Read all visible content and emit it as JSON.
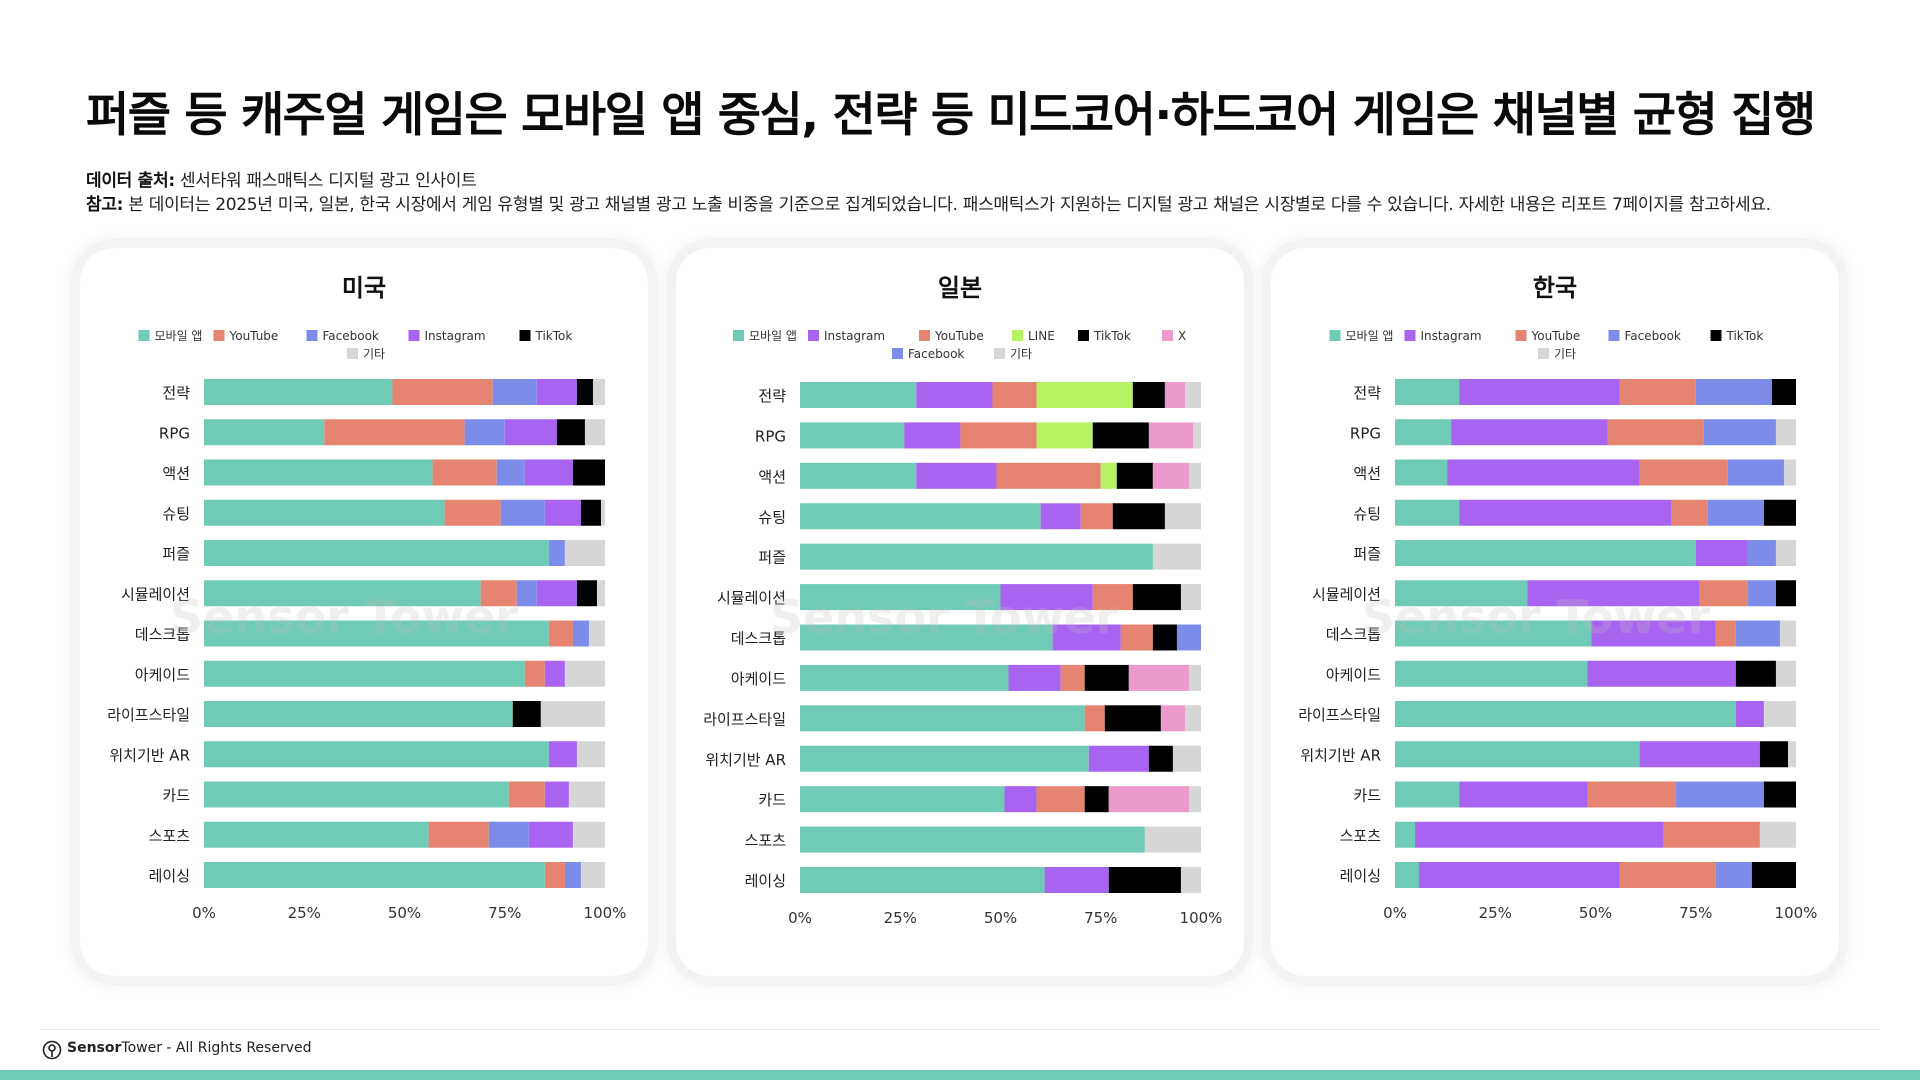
{
  "title": "퍼즐 등 캐주얼 게임은 모바일 앱 중심, 전략 등 미드코어·하드코어 게임은 채널별 균형 집행",
  "source_label": "데이터 출처:",
  "source_text": "센서타워 패스매틱스 디지털 광고 인사이트",
  "note_label": "참고:",
  "note_text": "본 데이터는 2025년 미국, 일본, 한국 시장에서 게임 유형별 및 광고 채널별 광고 노출 비중을 기준으로 집계되었습니다. 패스매틱스가 지원하는 디지털 광고 채널은 시장별로 다를 수 있습니다. 자세한 내용은 리포트 7페이지를 참고하세요.",
  "watermark": "Sensor Tower",
  "footer": {
    "brand_a": "Sensor",
    "brand_b": "Tower",
    "rights": " - All Rights Reserved"
  },
  "colors": {
    "모바일 앱": "#6fcbb5",
    "YouTube": "#e58470",
    "Facebook": "#7d8ce8",
    "Instagram": "#a863f0",
    "TikTok": "#000000",
    "LINE": "#b5f363",
    "X": "#ec99cb",
    "기타": "#d6d6d6"
  },
  "chart_data": [
    {
      "type": "bar",
      "orientation": "horizontal",
      "stacked": true,
      "title": "미국",
      "categories": [
        "전략",
        "RPG",
        "액션",
        "슈팅",
        "퍼즐",
        "시뮬레이션",
        "데스크톱",
        "아케이드",
        "라이프스타일",
        "위치기반 AR",
        "카드",
        "스포츠",
        "레이싱"
      ],
      "x_ticks": [
        "0%",
        "25%",
        "50%",
        "75%",
        "100%"
      ],
      "xlim": [
        0,
        100
      ],
      "legend": "top",
      "series": [
        {
          "name": "모바일 앱",
          "values": [
            47,
            30,
            57,
            60,
            86,
            69,
            86,
            80,
            77,
            86,
            76,
            56,
            85
          ]
        },
        {
          "name": "YouTube",
          "values": [
            25,
            35,
            16,
            14,
            0,
            9,
            6,
            5,
            0,
            0,
            9,
            15,
            5
          ]
        },
        {
          "name": "Facebook",
          "values": [
            11,
            10,
            7,
            11,
            4,
            5,
            4,
            0,
            0,
            0,
            0,
            10,
            4
          ]
        },
        {
          "name": "Instagram",
          "values": [
            10,
            13,
            12,
            9,
            0,
            10,
            0,
            5,
            0,
            7,
            6,
            11,
            0
          ]
        },
        {
          "name": "TikTok",
          "values": [
            4,
            7,
            8,
            5,
            0,
            5,
            0,
            0,
            7,
            0,
            0,
            0,
            0
          ]
        },
        {
          "name": "기타",
          "values": [
            3,
            5,
            0,
            1,
            10,
            2,
            4,
            10,
            16,
            7,
            9,
            8,
            6
          ]
        }
      ]
    },
    {
      "type": "bar",
      "orientation": "horizontal",
      "stacked": true,
      "title": "일본",
      "categories": [
        "전략",
        "RPG",
        "액션",
        "슈팅",
        "퍼즐",
        "시뮬레이션",
        "데스크톱",
        "아케이드",
        "라이프스타일",
        "위치기반 AR",
        "카드",
        "스포츠",
        "레이싱"
      ],
      "x_ticks": [
        "0%",
        "25%",
        "50%",
        "75%",
        "100%"
      ],
      "xlim": [
        0,
        100
      ],
      "legend": "top",
      "series": [
        {
          "name": "모바일 앱",
          "values": [
            29,
            26,
            29,
            60,
            88,
            50,
            63,
            52,
            71,
            72,
            51,
            86,
            61
          ]
        },
        {
          "name": "Instagram",
          "values": [
            19,
            14,
            20,
            10,
            0,
            23,
            17,
            13,
            0,
            15,
            8,
            0,
            16
          ]
        },
        {
          "name": "YouTube",
          "values": [
            11,
            19,
            26,
            8,
            0,
            10,
            8,
            6,
            5,
            0,
            12,
            0,
            0
          ]
        },
        {
          "name": "LINE",
          "values": [
            24,
            14,
            4,
            0,
            0,
            0,
            0,
            0,
            0,
            0,
            0,
            0,
            0
          ]
        },
        {
          "name": "TikTok",
          "values": [
            8,
            14,
            9,
            13,
            0,
            12,
            6,
            11,
            14,
            6,
            6,
            0,
            18
          ]
        },
        {
          "name": "X",
          "values": [
            5,
            11,
            9,
            0,
            0,
            0,
            0,
            15,
            6,
            0,
            20,
            0,
            0
          ]
        },
        {
          "name": "Facebook",
          "values": [
            0,
            0,
            0,
            0,
            0,
            0,
            6,
            0,
            0,
            0,
            0,
            0,
            0
          ]
        },
        {
          "name": "기타",
          "values": [
            4,
            2,
            3,
            9,
            12,
            5,
            0,
            3,
            4,
            7,
            3,
            14,
            5
          ]
        }
      ]
    },
    {
      "type": "bar",
      "orientation": "horizontal",
      "stacked": true,
      "title": "한국",
      "categories": [
        "전략",
        "RPG",
        "액션",
        "슈팅",
        "퍼즐",
        "시뮬레이션",
        "데스크톱",
        "아케이드",
        "라이프스타일",
        "위치기반 AR",
        "카드",
        "스포츠",
        "레이싱"
      ],
      "x_ticks": [
        "0%",
        "25%",
        "50%",
        "75%",
        "100%"
      ],
      "xlim": [
        0,
        100
      ],
      "legend": "top",
      "series": [
        {
          "name": "모바일 앱",
          "values": [
            16,
            14,
            13,
            16,
            75,
            33,
            49,
            48,
            85,
            61,
            16,
            5,
            6
          ]
        },
        {
          "name": "Instagram",
          "values": [
            40,
            39,
            48,
            53,
            13,
            43,
            31,
            37,
            7,
            30,
            32,
            62,
            50
          ]
        },
        {
          "name": "YouTube",
          "values": [
            19,
            24,
            22,
            9,
            0,
            12,
            5,
            0,
            0,
            0,
            22,
            24,
            24
          ]
        },
        {
          "name": "Facebook",
          "values": [
            19,
            18,
            14,
            14,
            7,
            7,
            11,
            0,
            0,
            0,
            22,
            0,
            9
          ]
        },
        {
          "name": "TikTok",
          "values": [
            6,
            0,
            0,
            8,
            0,
            5,
            0,
            10,
            0,
            7,
            8,
            0,
            11
          ]
        },
        {
          "name": "기타",
          "values": [
            0,
            5,
            3,
            0,
            5,
            0,
            4,
            5,
            8,
            2,
            0,
            9,
            0
          ]
        }
      ]
    }
  ]
}
